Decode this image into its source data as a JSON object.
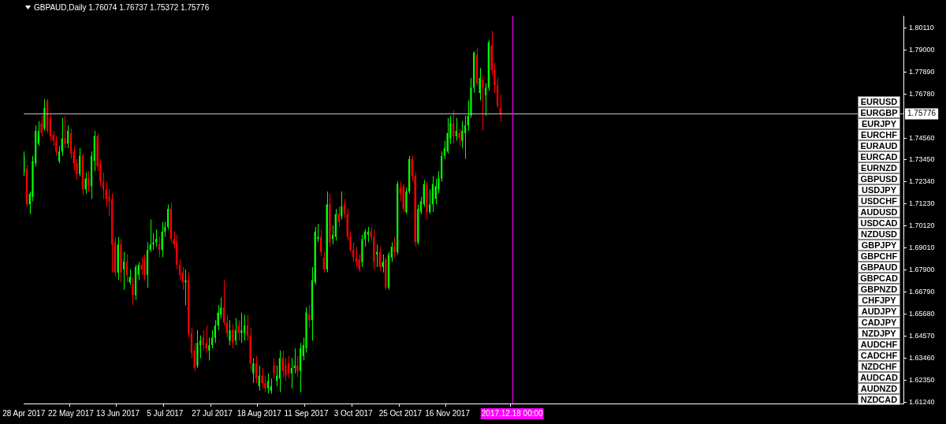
{
  "chart_data": {
    "type": "candlestick",
    "title": "GBPAUD,Daily 1.76074 1.76737 1.75372 1.75776",
    "colors": [
      "#00ff00",
      "#ff0000",
      "#00ff00",
      "#00ff00",
      "#00ff00",
      "#00ff00",
      "#ff0000",
      "#00ff00",
      "#ff0000",
      "#ff0000",
      "#ff0000",
      "#ff0000",
      "#00ff00",
      "#00ff00",
      "#ff0000",
      "#00ff00",
      "#ff0000",
      "#ff0000",
      "#ff0000",
      "#00ff00",
      "#ff0000",
      "#00ff00",
      "#ff0000",
      "#00ff00",
      "#00ff00",
      "#ff0000",
      "#ff0000",
      "#ff0000",
      "#ff0000",
      "#ff0000",
      "#ff0000",
      "#ff0000",
      "#00ff00",
      "#ff0000",
      "#00ff00",
      "#ff0000",
      "#00ff00",
      "#ff0000",
      "#00ff00",
      "#00ff00",
      "#ff0000",
      "#ff0000",
      "#00ff00",
      "#00ff00",
      "#00ff00",
      "#00ff00",
      "#ff0000",
      "#00ff00",
      "#00ff00",
      "#00ff00",
      "#ff0000",
      "#ff0000",
      "#ff0000",
      "#ff0000",
      "#ff0000",
      "#00ff00",
      "#ff0000",
      "#ff0000",
      "#ff0000",
      "#00ff00",
      "#00ff00",
      "#ff0000",
      "#ff0000",
      "#00ff00",
      "#00ff00",
      "#00ff00",
      "#00ff00",
      "#00ff00",
      "#ff0000",
      "#ff0000",
      "#00ff00",
      "#ff0000",
      "#00ff00",
      "#ff0000",
      "#00ff00",
      "#00ff00",
      "#ff0000",
      "#ff0000",
      "#00ff00",
      "#ff0000",
      "#00ff00",
      "#ff0000",
      "#ff0000",
      "#00ff00",
      "#00ff00",
      "#ff0000",
      "#00ff00",
      "#00ff00",
      "#ff0000",
      "#ff0000",
      "#ff0000",
      "#00ff00",
      "#00ff00",
      "#ff0000",
      "#00ff00",
      "#00ff00",
      "#00ff00",
      "#ff0000",
      "#00ff00",
      "#00ff00",
      "#00ff00",
      "#ff0000",
      "#ff0000",
      "#00ff00",
      "#ff0000",
      "#00ff00",
      "#00ff00",
      "#ff0000",
      "#00ff00",
      "#ff0000",
      "#ff0000",
      "#ff0000",
      "#ff0000",
      "#ff0000",
      "#ff0000",
      "#00ff00",
      "#00ff00",
      "#00ff00",
      "#ff0000",
      "#ff0000",
      "#00ff00",
      "#ff0000",
      "#00ff00",
      "#ff0000",
      "#00ff00",
      "#00ff00",
      "#ff0000",
      "#00ff00",
      "#ff0000",
      "#ff0000",
      "#00ff00",
      "#00ff00",
      "#ff0000",
      "#ff0000",
      "#00ff00",
      "#00ff00",
      "#00ff00",
      "#ff0000",
      "#00ff00",
      "#00ff00",
      "#00ff00",
      "#00ff00",
      "#00ff00",
      "#00ff00",
      "#00ff00",
      "#00ff00",
      "#ff0000",
      "#00ff00",
      "#ff0000",
      "#00ff00",
      "#00ff00",
      "#00ff00",
      "#00ff00",
      "#00ff00",
      "#ff0000",
      "#00ff00",
      "#ff0000",
      "#00ff00",
      "#00ff00",
      "#ff0000",
      "#ff0000",
      "#ff0000",
      "#ff0000",
      null,
      null,
      null,
      null,
      null,
      null,
      null,
      null,
      null,
      null,
      null,
      null,
      null,
      null,
      null,
      null,
      null,
      null,
      null,
      null,
      null,
      null,
      null,
      null,
      null,
      null,
      null,
      null,
      null,
      null,
      null,
      null,
      null,
      null,
      null,
      null,
      null,
      null,
      null,
      null,
      null,
      null,
      null,
      null,
      null,
      null,
      null,
      null,
      null,
      null,
      null,
      null,
      null,
      null,
      null,
      null,
      null,
      null,
      null,
      null,
      null,
      null,
      null,
      null,
      null,
      null,
      null,
      null,
      null,
      null,
      null,
      null,
      null,
      null,
      null,
      null,
      null,
      null,
      null,
      null,
      null,
      null,
      null,
      null,
      null,
      null,
      null,
      null,
      null,
      null,
      null,
      null,
      null,
      null,
      null,
      null,
      null,
      null,
      null,
      null,
      null,
      null,
      null,
      null,
      null,
      null,
      null,
      null,
      null,
      null,
      null,
      null,
      null,
      null,
      null,
      null,
      null,
      null,
      null,
      null,
      null,
      null,
      null,
      null,
      null,
      null,
      null,
      null,
      null,
      null,
      null,
      null,
      null,
      null,
      null,
      null,
      null
    ],
    "categories": [
      "28 Apr 2017",
      null,
      null,
      null,
      null,
      null,
      null,
      null,
      null,
      null,
      null,
      null,
      null,
      null,
      null,
      null,
      "22 May 2017",
      null,
      null,
      null,
      null,
      null,
      null,
      null,
      null,
      null,
      null,
      null,
      null,
      null,
      null,
      null,
      "13 Jun 2017",
      null,
      null,
      null,
      null,
      null,
      null,
      null,
      null,
      null,
      null,
      null,
      null,
      null,
      null,
      null,
      "5 Jul 2017",
      null,
      null,
      null,
      null,
      null,
      null,
      null,
      null,
      null,
      null,
      null,
      null,
      null,
      null,
      null,
      "27 Jul 2017",
      null,
      null,
      null,
      null,
      null,
      null,
      null,
      null,
      null,
      null,
      null,
      null,
      null,
      null,
      null,
      "18 Aug 2017",
      null,
      null,
      null,
      null,
      null,
      null,
      null,
      null,
      null,
      null,
      null,
      null,
      null,
      null,
      null,
      "11 Sep 2017",
      null,
      null,
      null,
      null,
      null,
      null,
      null,
      null,
      null,
      null,
      null,
      null,
      null,
      null,
      null,
      "3 Oct 2017",
      null,
      null,
      null,
      null,
      null,
      null,
      null,
      null,
      null,
      null,
      null,
      null,
      null,
      null,
      null,
      "25 Oct 2017",
      null,
      null,
      null,
      null,
      null,
      null,
      null,
      null,
      null,
      null,
      null,
      null,
      null,
      null,
      null,
      "16 Nov 2017",
      null,
      null,
      null,
      null,
      null,
      null,
      null,
      null,
      null,
      null,
      null,
      null,
      null,
      null,
      null,
      null,
      null,
      null,
      null,
      null,
      null,
      "2017.12.18 00:00",
      null,
      null,
      null,
      null,
      null,
      null,
      null,
      null,
      null,
      null,
      null,
      null,
      null,
      null,
      null,
      null,
      null,
      null,
      null,
      null,
      null,
      null,
      null,
      null,
      null,
      null,
      null,
      null,
      null,
      null,
      null,
      null,
      null,
      null,
      null,
      null,
      null,
      null,
      null,
      null,
      null,
      null,
      null,
      null,
      null,
      null,
      null,
      null,
      null,
      null,
      null,
      null,
      null,
      null,
      null,
      null,
      null,
      null,
      null,
      null,
      null,
      null,
      null,
      null,
      null,
      null,
      null,
      null,
      null,
      null,
      null,
      null,
      null,
      null,
      null,
      null,
      null,
      null,
      null,
      null,
      null,
      null,
      null,
      null,
      null,
      null,
      null,
      null,
      null,
      null,
      null,
      null,
      null,
      null,
      null,
      null,
      null,
      null,
      null,
      null,
      null,
      null,
      null,
      null,
      null,
      null,
      null,
      null,
      null,
      null,
      null,
      null,
      null,
      null,
      null,
      null,
      null,
      null,
      null,
      null,
      null,
      null,
      null,
      null,
      null,
      null,
      null,
      null,
      null,
      null,
      null,
      null,
      null
    ],
    "ohlc": [
      [
        1.7282,
        1.7388,
        1.7263,
        1.7366
      ],
      [
        1.7301,
        1.732,
        1.711,
        1.7121
      ],
      [
        1.7121,
        1.7186,
        1.7072,
        1.7175
      ],
      [
        1.7159,
        1.7366,
        1.7137,
        1.7339
      ],
      [
        1.7328,
        1.7519,
        1.7312,
        1.7492
      ],
      [
        1.7427,
        1.7541,
        1.7415,
        1.7492
      ],
      [
        1.753,
        1.7568,
        1.7465,
        1.748
      ],
      [
        1.7503,
        1.7652,
        1.7492,
        1.7606
      ],
      [
        1.7645,
        1.7652,
        1.748,
        1.7492
      ],
      [
        1.7557,
        1.758,
        1.7442,
        1.7465
      ],
      [
        1.7473,
        1.7492,
        1.7415,
        1.7442
      ],
      [
        1.7442,
        1.7465,
        1.7366,
        1.7388
      ],
      [
        1.7339,
        1.7415,
        1.7328,
        1.7388
      ],
      [
        1.7388,
        1.7557,
        1.7366,
        1.7454
      ],
      [
        1.7454,
        1.7568,
        1.7404,
        1.7427
      ],
      [
        1.7427,
        1.7519,
        1.7404,
        1.7492
      ],
      [
        1.748,
        1.7503,
        1.735,
        1.7377
      ],
      [
        1.7388,
        1.7415,
        1.7289,
        1.7328
      ],
      [
        1.7328,
        1.735,
        1.7244,
        1.7274
      ],
      [
        1.7274,
        1.7404,
        1.7263,
        1.7366
      ],
      [
        1.7366,
        1.7377,
        1.7167,
        1.7197
      ],
      [
        1.7197,
        1.7282,
        1.7175,
        1.7251
      ],
      [
        1.7251,
        1.7289,
        1.7186,
        1.7213
      ],
      [
        1.7213,
        1.7388,
        1.7148,
        1.7366
      ],
      [
        1.7339,
        1.7492,
        1.7289,
        1.7465
      ],
      [
        1.7465,
        1.748,
        1.7289,
        1.7312
      ],
      [
        1.7328,
        1.735,
        1.7213,
        1.7236
      ],
      [
        1.7236,
        1.7282,
        1.7148,
        1.7197
      ],
      [
        1.7197,
        1.7236,
        1.711,
        1.7148
      ],
      [
        1.7159,
        1.7197,
        1.706,
        1.7137
      ],
      [
        1.7148,
        1.7175,
        1.6778,
        1.6919
      ],
      [
        1.693,
        1.6957,
        1.6755,
        1.6778
      ],
      [
        1.6778,
        1.6957,
        1.6739,
        1.6919
      ],
      [
        1.6919,
        1.6946,
        1.6728,
        1.6778
      ],
      [
        1.6793,
        1.6881,
        1.669,
        1.6831
      ],
      [
        1.6831,
        1.6869,
        1.6728,
        1.6766
      ],
      [
        1.6728,
        1.6793,
        1.6716,
        1.6755
      ],
      [
        1.6716,
        1.6755,
        1.6613,
        1.6663
      ],
      [
        1.6663,
        1.6816,
        1.664,
        1.6805
      ],
      [
        1.6766,
        1.6831,
        1.6739,
        1.6816
      ],
      [
        1.6816,
        1.6854,
        1.6766,
        1.6793
      ],
      [
        1.6843,
        1.6869,
        1.6739,
        1.6766
      ],
      [
        1.6766,
        1.693,
        1.6701,
        1.6892
      ],
      [
        1.6892,
        1.7045,
        1.6881,
        1.6919
      ],
      [
        1.6919,
        1.6976,
        1.6892,
        1.693
      ],
      [
        1.693,
        1.6995,
        1.6907,
        1.6946
      ],
      [
        1.6919,
        1.6957,
        1.6854,
        1.6892
      ],
      [
        1.6892,
        1.7033,
        1.6854,
        1.6984
      ],
      [
        1.6984,
        1.7033,
        1.6957,
        1.7007
      ],
      [
        1.7007,
        1.7121,
        1.6995,
        1.7098
      ],
      [
        1.7098,
        1.7129,
        1.693,
        1.6946
      ],
      [
        1.6946,
        1.6984,
        1.69,
        1.6919
      ],
      [
        1.693,
        1.6968,
        1.6793,
        1.6816
      ],
      [
        1.6816,
        1.6843,
        1.6739,
        1.6766
      ],
      [
        1.6778,
        1.6805,
        1.669,
        1.6728
      ],
      [
        1.6728,
        1.6793,
        1.6613,
        1.6739
      ],
      [
        1.6739,
        1.6778,
        1.6449,
        1.6472
      ],
      [
        1.6472,
        1.6499,
        1.6346,
        1.6373
      ],
      [
        1.6384,
        1.6422,
        1.6281,
        1.6296
      ],
      [
        1.6308,
        1.6487,
        1.6296,
        1.6422
      ],
      [
        1.6411,
        1.646,
        1.6346,
        1.6434
      ],
      [
        1.6449,
        1.6487,
        1.6384,
        1.6411
      ],
      [
        1.6422,
        1.651,
        1.6373,
        1.6395
      ],
      [
        1.6384,
        1.6449,
        1.6334,
        1.6411
      ],
      [
        1.6411,
        1.6487,
        1.6395,
        1.6449
      ],
      [
        1.6449,
        1.6537,
        1.6422,
        1.651
      ],
      [
        1.651,
        1.6613,
        1.6487,
        1.6575
      ],
      [
        1.6564,
        1.6651,
        1.6548,
        1.6601
      ],
      [
        1.6601,
        1.6739,
        1.651,
        1.6525
      ],
      [
        1.6525,
        1.6564,
        1.6449,
        1.6472
      ],
      [
        1.6434,
        1.6537,
        1.6411,
        1.6487
      ],
      [
        1.6487,
        1.6518,
        1.6395,
        1.6422
      ],
      [
        1.6434,
        1.6548,
        1.6411,
        1.6487
      ],
      [
        1.651,
        1.6537,
        1.6434,
        1.6472
      ],
      [
        1.6472,
        1.6575,
        1.6422,
        1.6487
      ],
      [
        1.6472,
        1.6564,
        1.6434,
        1.651
      ],
      [
        1.651,
        1.6564,
        1.6434,
        1.646
      ],
      [
        1.646,
        1.6499,
        1.6281,
        1.6319
      ],
      [
        1.6269,
        1.6346,
        1.622,
        1.6319
      ],
      [
        1.6319,
        1.6357,
        1.622,
        1.6243
      ],
      [
        1.6204,
        1.6308,
        1.6182,
        1.6258
      ],
      [
        1.6258,
        1.6296,
        1.6193,
        1.622
      ],
      [
        1.622,
        1.6258,
        1.6174,
        1.6193
      ],
      [
        1.6193,
        1.6269,
        1.6166,
        1.6231
      ],
      [
        1.6182,
        1.6243,
        1.6166,
        1.6204
      ],
      [
        1.6308,
        1.6346,
        1.6243,
        1.6269
      ],
      [
        1.6231,
        1.6308,
        1.6204,
        1.6258
      ],
      [
        1.6243,
        1.6384,
        1.6174,
        1.6346
      ],
      [
        1.6346,
        1.6384,
        1.625,
        1.6281
      ],
      [
        1.6308,
        1.6346,
        1.6231,
        1.6258
      ],
      [
        1.6319,
        1.6357,
        1.6243,
        1.6269
      ],
      [
        1.6269,
        1.6346,
        1.6193,
        1.6296
      ],
      [
        1.6296,
        1.6395,
        1.6269,
        1.6308
      ],
      [
        1.6308,
        1.6357,
        1.625,
        1.6281
      ],
      [
        1.6281,
        1.6422,
        1.6174,
        1.6395
      ],
      [
        1.6357,
        1.6449,
        1.6334,
        1.6411
      ],
      [
        1.6395,
        1.6601,
        1.6373,
        1.6575
      ],
      [
        1.6564,
        1.6613,
        1.6499,
        1.6537
      ],
      [
        1.6537,
        1.6805,
        1.6434,
        1.6739
      ],
      [
        1.6728,
        1.7007,
        1.6716,
        1.6984
      ],
      [
        1.6946,
        1.7022,
        1.693,
        1.6957
      ],
      [
        1.6957,
        1.6995,
        1.6862,
        1.6881
      ],
      [
        1.6854,
        1.6881,
        1.6778,
        1.6793
      ],
      [
        1.6793,
        1.7186,
        1.6778,
        1.7121
      ],
      [
        1.7121,
        1.7175,
        1.6907,
        1.693
      ],
      [
        1.6946,
        1.7014,
        1.6919,
        1.6968
      ],
      [
        1.6957,
        1.7098,
        1.6938,
        1.7072
      ],
      [
        1.7072,
        1.711,
        1.7007,
        1.7033
      ],
      [
        1.706,
        1.7186,
        1.7045,
        1.711
      ],
      [
        1.7121,
        1.7148,
        1.7053,
        1.7072
      ],
      [
        1.7072,
        1.7098,
        1.6938,
        1.6957
      ],
      [
        1.6957,
        1.6984,
        1.6881,
        1.6892
      ],
      [
        1.6892,
        1.693,
        1.6831,
        1.6854
      ],
      [
        1.6854,
        1.6907,
        1.6805,
        1.6831
      ],
      [
        1.6843,
        1.6869,
        1.6778,
        1.6793
      ],
      [
        1.6831,
        1.6968,
        1.6805,
        1.6946
      ],
      [
        1.6946,
        1.6995,
        1.6907,
        1.6984
      ],
      [
        1.6968,
        1.7007,
        1.693,
        1.6984
      ],
      [
        1.6984,
        1.7007,
        1.6938,
        1.6957
      ],
      [
        1.6957,
        1.6995,
        1.6793,
        1.6831
      ],
      [
        1.6869,
        1.6919,
        1.6805,
        1.6881
      ],
      [
        1.6881,
        1.6907,
        1.6786,
        1.6805
      ],
      [
        1.6805,
        1.6869,
        1.6778,
        1.6831
      ],
      [
        1.6843,
        1.6854,
        1.669,
        1.6701
      ],
      [
        1.6701,
        1.6881,
        1.669,
        1.6869
      ],
      [
        1.6854,
        1.693,
        1.6831,
        1.6907
      ],
      [
        1.6907,
        1.6957,
        1.6854,
        1.6881
      ],
      [
        1.6881,
        1.7236,
        1.6869,
        1.7224
      ],
      [
        1.7205,
        1.7236,
        1.7137,
        1.7175
      ],
      [
        1.7213,
        1.7224,
        1.7083,
        1.7098
      ],
      [
        1.7083,
        1.7205,
        1.7072,
        1.7186
      ],
      [
        1.7186,
        1.7366,
        1.7175,
        1.735
      ],
      [
        1.735,
        1.7366,
        1.7236,
        1.7263
      ],
      [
        1.7263,
        1.7282,
        1.6907,
        1.693
      ],
      [
        1.693,
        1.7121,
        1.6919,
        1.7098
      ],
      [
        1.7083,
        1.7159,
        1.7072,
        1.7137
      ],
      [
        1.7121,
        1.7244,
        1.711,
        1.7224
      ],
      [
        1.7224,
        1.7236,
        1.7045,
        1.7083
      ],
      [
        1.7083,
        1.7197,
        1.7072,
        1.7121
      ],
      [
        1.7121,
        1.7263,
        1.7083,
        1.7224
      ],
      [
        1.7148,
        1.7251,
        1.7121,
        1.7213
      ],
      [
        1.7197,
        1.7289,
        1.7175,
        1.7251
      ],
      [
        1.7251,
        1.7388,
        1.7236,
        1.7366
      ],
      [
        1.7366,
        1.7442,
        1.735,
        1.7404
      ],
      [
        1.7388,
        1.7557,
        1.7377,
        1.748
      ],
      [
        1.7454,
        1.7568,
        1.7427,
        1.753
      ],
      [
        1.753,
        1.7595,
        1.7427,
        1.7465
      ],
      [
        1.7465,
        1.7557,
        1.7442,
        1.7492
      ],
      [
        1.748,
        1.7503,
        1.7415,
        1.7454
      ],
      [
        1.7442,
        1.7541,
        1.7404,
        1.7492
      ],
      [
        1.748,
        1.7568,
        1.735,
        1.7519
      ],
      [
        1.7519,
        1.7645,
        1.7492,
        1.7568
      ],
      [
        1.7568,
        1.7759,
        1.7557,
        1.7709
      ],
      [
        1.7709,
        1.7893,
        1.7683,
        1.7885
      ],
      [
        1.7874,
        1.7912,
        1.7721,
        1.7732
      ],
      [
        1.7683,
        1.7809,
        1.7645,
        1.7759
      ],
      [
        1.7748,
        1.7771,
        1.7492,
        1.7709
      ],
      [
        1.7671,
        1.7732,
        1.7568,
        1.7709
      ],
      [
        1.7709,
        1.795,
        1.7694,
        1.7939
      ],
      [
        1.7923,
        1.7996,
        1.7771,
        1.7797
      ],
      [
        1.7797,
        1.7836,
        1.7683,
        1.7721
      ],
      [
        1.7721,
        1.7759,
        1.7606,
        1.7618
      ],
      [
        1.76074,
        1.76737,
        1.75372,
        1.75776
      ],
      null,
      null,
      null,
      null,
      null,
      null,
      null,
      null,
      null,
      null,
      null,
      null,
      null,
      null,
      null,
      null,
      null,
      null,
      null,
      null,
      null,
      null,
      null,
      null,
      null,
      null,
      null,
      null,
      null,
      null,
      null,
      null,
      null,
      null,
      null,
      null,
      null,
      null,
      null,
      null,
      null,
      null,
      null,
      null,
      null,
      null,
      null,
      null,
      null,
      null,
      null,
      null,
      null,
      null,
      null,
      null,
      null,
      null,
      null,
      null,
      null,
      null,
      null,
      null,
      null,
      null,
      null,
      null,
      null,
      null,
      null,
      null,
      null,
      null,
      null,
      null,
      null,
      null,
      null,
      null,
      null,
      null,
      null,
      null,
      null,
      null,
      null,
      null,
      null,
      null,
      null,
      null,
      null,
      null,
      null,
      null,
      null,
      null,
      null,
      null,
      null,
      null,
      null,
      null,
      null,
      null,
      null,
      null,
      null,
      null,
      null,
      null,
      null,
      null,
      null,
      null,
      null,
      null,
      null,
      null,
      null,
      null,
      null,
      null,
      null,
      null,
      null,
      null,
      null,
      null,
      null,
      null,
      null,
      null,
      null,
      null,
      null
    ],
    "ylim": [
      1.6117,
      1.8072
    ],
    "yticks": [
      {
        "value": 1.8011,
        "label": "1.80110"
      },
      {
        "value": 1.79,
        "label": "1.79000"
      },
      {
        "value": 1.7789,
        "label": "1.77890"
      },
      {
        "value": 1.7678,
        "label": "1.76780"
      },
      {
        "value": 1.7456,
        "label": "1.74560"
      },
      {
        "value": 1.7345,
        "label": "1.73450"
      },
      {
        "value": 1.7234,
        "label": "1.72340"
      },
      {
        "value": 1.7123,
        "label": "1.71230"
      },
      {
        "value": 1.7012,
        "label": "1.70120"
      },
      {
        "value": 1.6901,
        "label": "1.69010"
      },
      {
        "value": 1.679,
        "label": "1.67900"
      },
      {
        "value": 1.6679,
        "label": "1.66790"
      },
      {
        "value": 1.6568,
        "label": "1.65680"
      },
      {
        "value": 1.6457,
        "label": "1.64570"
      },
      {
        "value": 1.6346,
        "label": "1.63460"
      },
      {
        "value": 1.6235,
        "label": "1.62350"
      },
      {
        "value": 1.6124,
        "label": "1.61240"
      }
    ],
    "ref_lines": [
      {
        "axis": "y",
        "value": 1.75776,
        "label": "1.75776",
        "color": "#c0c0c0"
      },
      {
        "axis": "x",
        "value": "2017.12.18 00:00",
        "color": "#ff00ff"
      }
    ],
    "annotations": [
      "EURUSD",
      "EURGBP",
      "EURJPY",
      "EURCHF",
      "EURAUD",
      "EURCAD",
      "EURNZD",
      "GBPUSD",
      "USDJPY",
      "USDCHF",
      "AUDUSD",
      "USDCAD",
      "NZDUSD",
      "GBPJPY",
      "GBPCHF",
      "GBPAUD",
      "GBPCAD",
      "GBPNZD",
      "CHFJPY",
      "AUDJPY",
      "CADJPY",
      "NZDJPY",
      "AUDCHF",
      "CADCHF",
      "NZDCHF",
      "AUDCAD",
      "AUDNZD",
      "NZDCAD"
    ]
  }
}
